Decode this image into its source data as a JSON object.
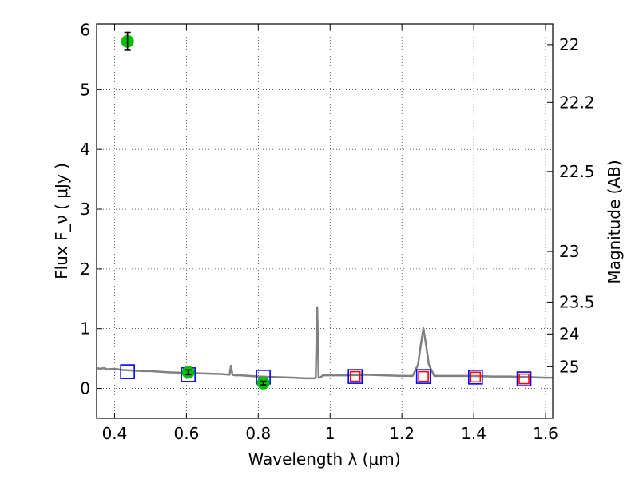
{
  "chart_data": {
    "type": "scatter",
    "xlabel": "Wavelength  λ (μm)",
    "ylabel": "Flux  F_ν  ( μJy )",
    "y2label": "Magnitude (AB)",
    "xlim": [
      0.35,
      1.62
    ],
    "ylim": [
      -0.5,
      6.1
    ],
    "grid": true,
    "x_ticks": [
      {
        "value": 0.4,
        "label": "0.4"
      },
      {
        "value": 0.6,
        "label": "0.6"
      },
      {
        "value": 0.8,
        "label": "0.8"
      },
      {
        "value": 1.0,
        "label": "1"
      },
      {
        "value": 1.2,
        "label": "1.2"
      },
      {
        "value": 1.4,
        "label": "1.4"
      },
      {
        "value": 1.6,
        "label": "1.6"
      }
    ],
    "y_ticks": [
      {
        "value": 0,
        "label": "0"
      },
      {
        "value": 1,
        "label": "1"
      },
      {
        "value": 2,
        "label": "2"
      },
      {
        "value": 3,
        "label": "3"
      },
      {
        "value": 4,
        "label": "4"
      },
      {
        "value": 5,
        "label": "5"
      },
      {
        "value": 6,
        "label": "6"
      }
    ],
    "y2_ticks": [
      {
        "magnitude": 22,
        "label": "22"
      },
      {
        "magnitude": 22.2,
        "label": "22.2"
      },
      {
        "magnitude": 22.5,
        "label": "22.5"
      },
      {
        "magnitude": 23,
        "label": "23"
      },
      {
        "magnitude": 23.5,
        "label": "23.5"
      },
      {
        "magnitude": 24,
        "label": "24"
      },
      {
        "magnitude": 25,
        "label": "25"
      }
    ],
    "series": [
      {
        "kind": "line",
        "color": "#808080",
        "x": [
          0.35,
          0.36,
          0.37,
          0.38,
          0.4,
          0.42,
          0.45,
          0.48,
          0.5,
          0.55,
          0.6,
          0.65,
          0.7,
          0.72,
          0.724,
          0.728,
          0.735,
          0.75,
          0.8,
          0.85,
          0.9,
          0.93,
          0.955,
          0.96,
          0.964,
          0.968,
          0.972,
          0.98,
          1.0,
          1.05,
          1.1,
          1.15,
          1.2,
          1.23,
          1.245,
          1.252,
          1.26,
          1.268,
          1.275,
          1.29,
          1.35,
          1.4,
          1.45,
          1.5,
          1.55,
          1.6,
          1.62
        ],
        "y": [
          0.34,
          0.33,
          0.34,
          0.32,
          0.33,
          0.31,
          0.3,
          0.29,
          0.29,
          0.27,
          0.26,
          0.25,
          0.24,
          0.23,
          0.38,
          0.23,
          0.22,
          0.22,
          0.2,
          0.19,
          0.18,
          0.17,
          0.17,
          0.18,
          1.36,
          0.18,
          0.18,
          0.22,
          0.22,
          0.22,
          0.23,
          0.22,
          0.21,
          0.21,
          0.4,
          0.7,
          1.01,
          0.7,
          0.4,
          0.21,
          0.21,
          0.21,
          0.2,
          0.2,
          0.19,
          0.18,
          0.18
        ]
      },
      {
        "kind": "squares",
        "color": "#0000ff",
        "x": [
          0.436,
          0.605,
          0.814,
          1.07,
          1.26,
          1.405,
          1.54
        ],
        "y": [
          0.28,
          0.23,
          0.19,
          0.2,
          0.2,
          0.19,
          0.16
        ]
      },
      {
        "kind": "squares",
        "color": "#ff0000",
        "x": [
          1.07,
          1.26,
          1.405,
          1.54
        ],
        "y": [
          0.2,
          0.2,
          0.19,
          0.16
        ]
      },
      {
        "kind": "points",
        "color": "#00c000",
        "x": [
          0.436,
          0.605,
          0.814
        ],
        "y": [
          5.81,
          0.27,
          0.09
        ],
        "yerr": [
          0.15,
          0.04,
          0.03
        ]
      }
    ]
  }
}
